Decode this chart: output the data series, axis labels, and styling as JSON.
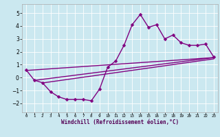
{
  "xlabel": "Windchill (Refroidissement éolien,°C)",
  "bg_color": "#cbe8f0",
  "line_color": "#800080",
  "markersize": 2.5,
  "linewidth": 1.0,
  "xlim": [
    -0.5,
    23.5
  ],
  "ylim": [
    -2.7,
    5.7
  ],
  "yticks": [
    -2,
    -1,
    0,
    1,
    2,
    3,
    4,
    5
  ],
  "xticks": [
    0,
    1,
    2,
    3,
    4,
    5,
    6,
    7,
    8,
    9,
    10,
    11,
    12,
    13,
    14,
    15,
    16,
    17,
    18,
    19,
    20,
    21,
    22,
    23
  ],
  "series": [
    [
      0,
      0.6
    ],
    [
      1,
      -0.2
    ],
    [
      2,
      -0.4
    ],
    [
      3,
      -1.1
    ],
    [
      4,
      -1.5
    ],
    [
      5,
      -1.7
    ],
    [
      6,
      -1.7
    ],
    [
      7,
      -1.7
    ],
    [
      8,
      -1.8
    ],
    [
      9,
      -0.9
    ],
    [
      10,
      0.8
    ],
    [
      11,
      1.3
    ],
    [
      12,
      2.5
    ],
    [
      13,
      4.1
    ],
    [
      14,
      4.9
    ],
    [
      15,
      3.9
    ],
    [
      16,
      4.1
    ],
    [
      17,
      3.0
    ],
    [
      18,
      3.3
    ],
    [
      19,
      2.7
    ],
    [
      20,
      2.5
    ],
    [
      21,
      2.5
    ],
    [
      22,
      2.6
    ],
    [
      23,
      1.6
    ]
  ],
  "line2": [
    [
      0,
      0.55
    ],
    [
      23,
      1.55
    ]
  ],
  "line3": [
    [
      1,
      -0.22
    ],
    [
      23,
      1.55
    ]
  ],
  "line4": [
    [
      2,
      -0.42
    ],
    [
      23,
      1.45
    ]
  ]
}
